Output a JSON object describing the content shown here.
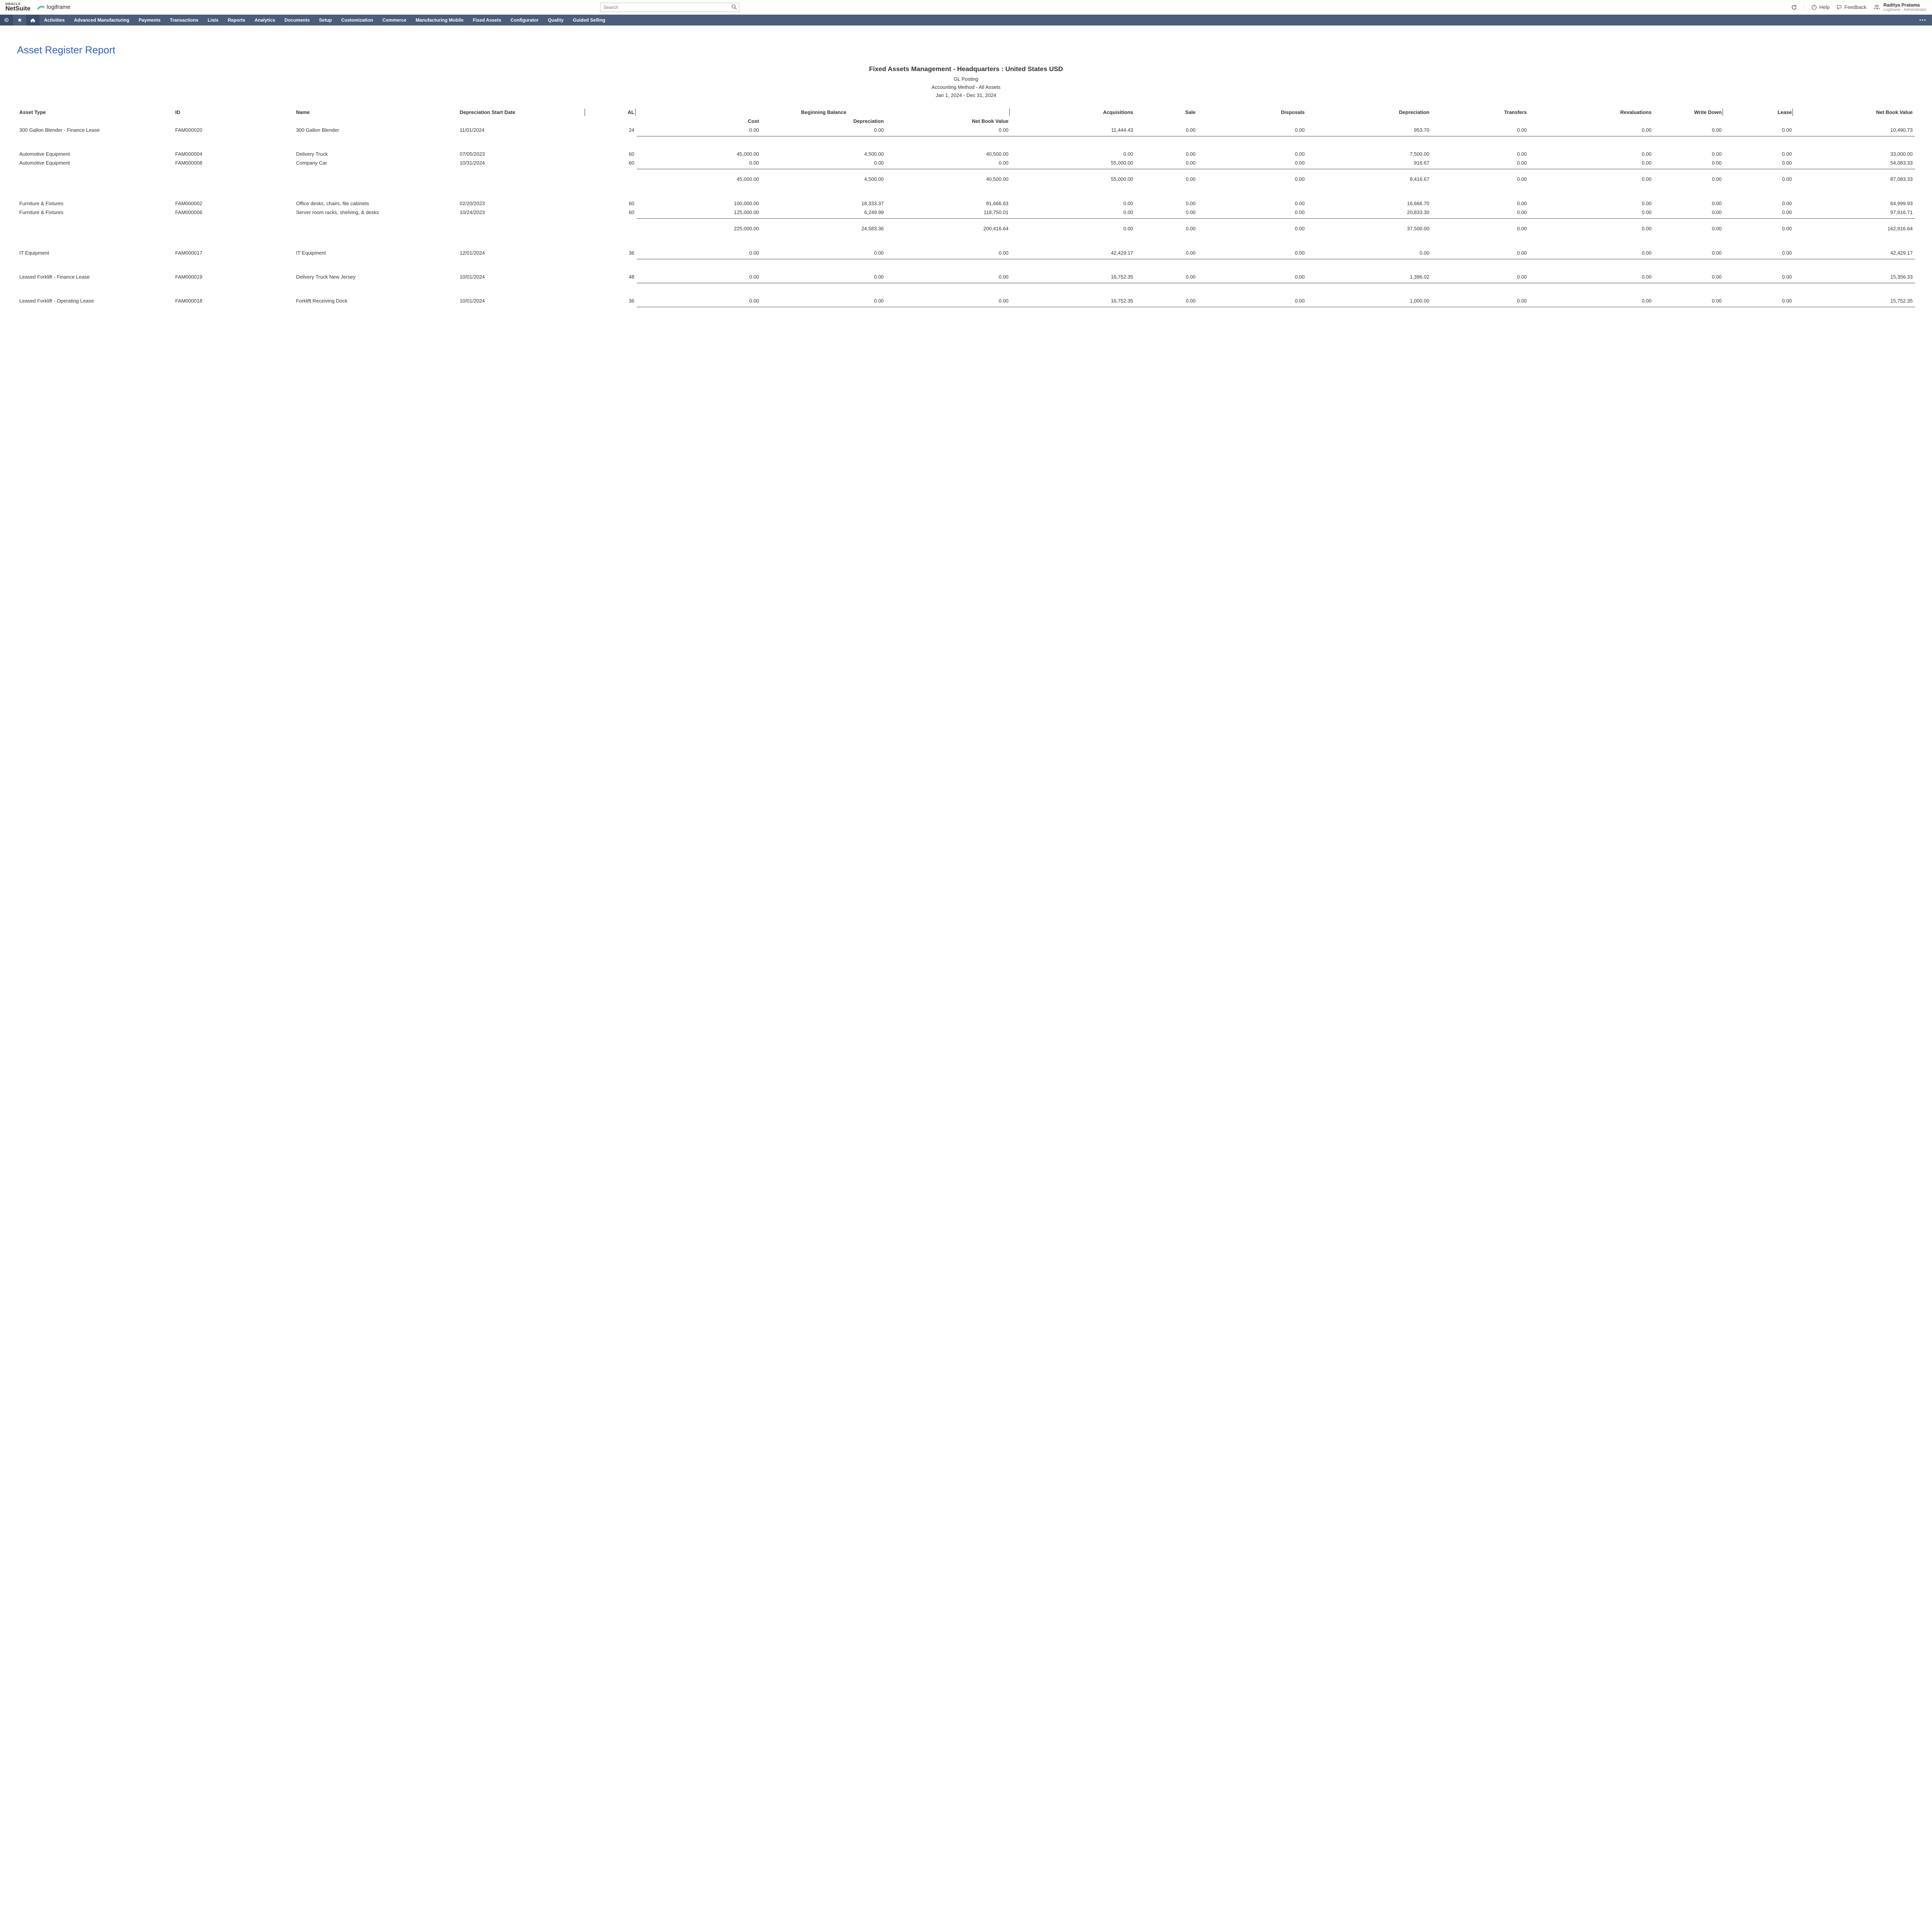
{
  "header": {
    "oracle_top": "ORACLE",
    "oracle_bottom": "NetSuite",
    "partner_brand": "logiframe",
    "search_placeholder": "Search",
    "help_label": "Help",
    "feedback_label": "Feedback",
    "user_name": "Raditya Pratama",
    "user_role": "Logiframe - Administrator"
  },
  "nav": {
    "items": [
      "Activities",
      "Advanced Manufacturing",
      "Payments",
      "Transactions",
      "Lists",
      "Reports",
      "Analytics",
      "Documents",
      "Setup",
      "Customization",
      "Commerce",
      "Manufacturing Mobile",
      "Fixed Assets",
      "Configurator",
      "Quality",
      "Guided Selling"
    ]
  },
  "page": {
    "title": "Asset Register Report",
    "report_title": "Fixed Assets Management - Headquarters : United States USD",
    "posting": "GL Posting",
    "method": "Accounting Method - All Assets",
    "period": "Jan 1, 2024 - Dec 31, 2024"
  },
  "table": {
    "headers": {
      "asset_type": "Asset Type",
      "id": "ID",
      "name": "Name",
      "dep_start": "Depreciation Start Date",
      "al": "AL",
      "beginning_balance": "Beginning Balance",
      "cost": "Cost",
      "depreciation_col": "Depreciation",
      "net_book_value": "Net Book Value",
      "acquisitions": "Acquisitions",
      "sale": "Sale",
      "disposals": "Disposals",
      "depreciation": "Depreciation",
      "transfers": "Transfers",
      "revaluations": "Revaluations",
      "write_down": "Write Down",
      "lease": "Lease",
      "net_book": "Net Book Value"
    },
    "groups": [
      {
        "rows": [
          {
            "type": "300 Gallon Blender - Finance Lease",
            "id": "FAM000020",
            "name": "300 Gallon Blender",
            "dep": "11/01/2024",
            "al": "24",
            "cost": "0.00",
            "depv": "0.00",
            "nbv": "0.00",
            "acq": "11,444.43",
            "sale": "0.00",
            "disp": "0.00",
            "depn": "953.70",
            "trf": "0.00",
            "rev": "0.00",
            "wd": "0.00",
            "lease": "0.00",
            "net": "10,490.73"
          }
        ],
        "subtotal": null
      },
      {
        "rows": [
          {
            "type": "Automotive Equipment",
            "id": "FAM000004",
            "name": "Delivery Truck",
            "dep": "07/05/2023",
            "al": "60",
            "cost": "45,000.00",
            "depv": "4,500.00",
            "nbv": "40,500.00",
            "acq": "0.00",
            "sale": "0.00",
            "disp": "0.00",
            "depn": "7,500.00",
            "trf": "0.00",
            "rev": "0.00",
            "wd": "0.00",
            "lease": "0.00",
            "net": "33,000.00"
          },
          {
            "type": "Automotive Equipment",
            "id": "FAM000008",
            "name": "Company Car",
            "dep": "10/31/2024",
            "al": "60",
            "cost": "0.00",
            "depv": "0.00",
            "nbv": "0.00",
            "acq": "55,000.00",
            "sale": "0.00",
            "disp": "0.00",
            "depn": "916.67",
            "trf": "0.00",
            "rev": "0.00",
            "wd": "0.00",
            "lease": "0.00",
            "net": "54,083.33"
          }
        ],
        "subtotal": {
          "cost": "45,000.00",
          "depv": "4,500.00",
          "nbv": "40,500.00",
          "acq": "55,000.00",
          "sale": "0.00",
          "disp": "0.00",
          "depn": "8,416.67",
          "trf": "0.00",
          "rev": "0.00",
          "wd": "0.00",
          "lease": "0.00",
          "net": "87,083.33"
        }
      },
      {
        "rows": [
          {
            "type": "Furniture & Fixtures",
            "id": "FAM000002",
            "name": "Office desks, chairs, file cabinets",
            "dep": "02/20/2023",
            "al": "60",
            "cost": "100,000.00",
            "depv": "18,333.37",
            "nbv": "81,666.63",
            "acq": "0.00",
            "sale": "0.00",
            "disp": "0.00",
            "depn": "16,666.70",
            "trf": "0.00",
            "rev": "0.00",
            "wd": "0.00",
            "lease": "0.00",
            "net": "64,999.93"
          },
          {
            "type": "Furniture & Fixtures",
            "id": "FAM000006",
            "name": "Server room racks, shelving, & desks",
            "dep": "10/24/2023",
            "al": "60",
            "cost": "125,000.00",
            "depv": "6,249.99",
            "nbv": "118,750.01",
            "acq": "0.00",
            "sale": "0.00",
            "disp": "0.00",
            "depn": "20,833.30",
            "trf": "0.00",
            "rev": "0.00",
            "wd": "0.00",
            "lease": "0.00",
            "net": "97,916.71"
          }
        ],
        "subtotal": {
          "cost": "225,000.00",
          "depv": "24,583.36",
          "nbv": "200,416.64",
          "acq": "0.00",
          "sale": "0.00",
          "disp": "0.00",
          "depn": "37,500.00",
          "trf": "0.00",
          "rev": "0.00",
          "wd": "0.00",
          "lease": "0.00",
          "net": "162,916.64"
        }
      },
      {
        "rows": [
          {
            "type": "IT Equipment",
            "id": "FAM000017",
            "name": "IT Equipment",
            "dep": "12/01/2024",
            "al": "36",
            "cost": "0.00",
            "depv": "0.00",
            "nbv": "0.00",
            "acq": "42,429.17",
            "sale": "0.00",
            "disp": "0.00",
            "depn": "0.00",
            "trf": "0.00",
            "rev": "0.00",
            "wd": "0.00",
            "lease": "0.00",
            "net": "42,429.17"
          }
        ],
        "subtotal": null
      },
      {
        "rows": [
          {
            "type": "Leased Forklift - Finance Lease",
            "id": "FAM000019",
            "name": "Delivery Truck New Jersey",
            "dep": "10/01/2024",
            "al": "48",
            "cost": "0.00",
            "depv": "0.00",
            "nbv": "0.00",
            "acq": "16,752.35",
            "sale": "0.00",
            "disp": "0.00",
            "depn": "1,396.02",
            "trf": "0.00",
            "rev": "0.00",
            "wd": "0.00",
            "lease": "0.00",
            "net": "15,356.33"
          }
        ],
        "subtotal": null
      },
      {
        "rows": [
          {
            "type": "Leased Forklift - Operating Lease",
            "id": "FAM000018",
            "name": "Forklift Receiving Dock",
            "dep": "10/01/2024",
            "al": "36",
            "cost": "0.00",
            "depv": "0.00",
            "nbv": "0.00",
            "acq": "16,752.35",
            "sale": "0.00",
            "disp": "0.00",
            "depn": "1,000.00",
            "trf": "0.00",
            "rev": "0.00",
            "wd": "0.00",
            "lease": "0.00",
            "net": "15,752.35"
          }
        ],
        "subtotal": null
      }
    ]
  },
  "style": {
    "nav_bg": "#4a5d7a",
    "nav_dark": "#3b4d68",
    "link_blue": "#2b5fc1",
    "row_line": "#444444"
  }
}
